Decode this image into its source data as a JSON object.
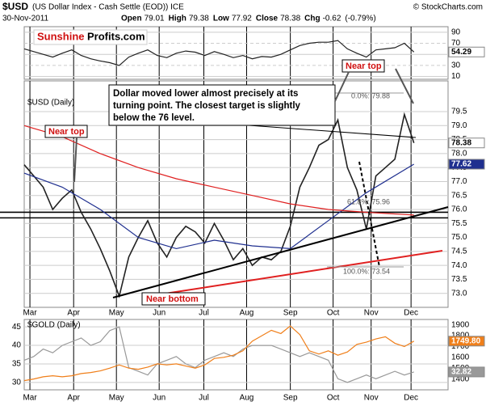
{
  "header": {
    "symbol": "$USD",
    "description": "(US Dollar Index - Cash Settle (EOD)) ICE",
    "date": "30-Nov-2011",
    "copyright": "© StockCharts.com",
    "quote": [
      {
        "label": "Open",
        "value": 79.01
      },
      {
        "label": "High",
        "value": 79.38
      },
      {
        "label": "Low",
        "value": 77.92
      },
      {
        "label": "Close",
        "value": 78.38
      },
      {
        "label": "Chg",
        "value": -0.62
      }
    ],
    "chg_pct": "(-0.79%)"
  },
  "annotations": {
    "logo_red": "Sunshine",
    "logo_black": "Profits.com",
    "comment": [
      "Dollar moved lower almost precisely at its",
      "turning point. The closest target is slightly",
      "below the 76 level."
    ],
    "near_top": "Near top",
    "near_bottom": "Near bottom",
    "fib_0": "0.0%: 79.88",
    "fib_618": "61.8%: 75.96",
    "fib_100": "100.0%: 73.54"
  },
  "chart_data": [
    {
      "type": "line",
      "title": "$USD (Daily)",
      "xlim": [
        0,
        44
      ],
      "xticks": [
        {
          "value": 0.6,
          "label": "Mar"
        },
        {
          "value": 5.2,
          "label": "Apr"
        },
        {
          "value": 9.7,
          "label": "May"
        },
        {
          "value": 14.2,
          "label": "Jun"
        },
        {
          "value": 18.9,
          "label": "Jul"
        },
        {
          "value": 23.4,
          "label": "Aug"
        },
        {
          "value": 28,
          "label": "Sep"
        },
        {
          "value": 32.5,
          "label": "Oct"
        },
        {
          "value": 36.5,
          "label": "Nov"
        },
        {
          "value": 40.7,
          "label": "Dec"
        }
      ],
      "ylim": [
        72.5,
        80.6
      ],
      "yticks": [
        {
          "value": 73,
          "label": "73.0"
        },
        73.5,
        {
          "value": 74,
          "label": "74.0"
        },
        74.5,
        {
          "value": 75,
          "label": "75.0"
        },
        75.5,
        {
          "value": 76,
          "label": "76.0"
        },
        76.5,
        {
          "value": 77,
          "label": "77.0"
        },
        77.5,
        {
          "value": 78,
          "label": "78.0"
        },
        78.5,
        {
          "value": 79,
          "label": "79.0"
        },
        79.5
      ],
      "grid": true,
      "levels": [
        75.9,
        75.7
      ],
      "series": [
        {
          "color": "#222222",
          "values": [
            77.6,
            77.2,
            76.8,
            76.0,
            76.4,
            76.7,
            75.9,
            75.3,
            74.6,
            73.8,
            72.9,
            74.3,
            75.0,
            75.6,
            74.8,
            74.3,
            75.0,
            75.4,
            75.2,
            74.8,
            75.5,
            74.9,
            74.2,
            74.6,
            74.0,
            74.3,
            74.2,
            74.5,
            75.4,
            76.8,
            77.5,
            78.3,
            78.5,
            79.2,
            77.5,
            76.7,
            75.3,
            77.2,
            77.5,
            77.8,
            79.4,
            78.38
          ]
        },
        {
          "color": "#1f2f8f",
          "x": [
            0,
            4,
            8,
            12,
            16,
            20,
            24,
            28,
            32,
            36,
            41
          ],
          "values": [
            77.3,
            76.8,
            76.0,
            75.0,
            74.6,
            74.9,
            74.7,
            74.6,
            75.6,
            76.6,
            77.62
          ]
        },
        {
          "color": "#e02020",
          "x": [
            0,
            4,
            8,
            12,
            16,
            20,
            24,
            28,
            32,
            36,
            41
          ],
          "values": [
            79.0,
            78.6,
            78.0,
            77.5,
            77.1,
            76.8,
            76.5,
            76.2,
            76.0,
            75.9,
            75.8
          ]
        }
      ]
    },
    {
      "type": "line",
      "ylim": [
        5,
        100
      ],
      "yticks": [
        90,
        70,
        50,
        30,
        10
      ],
      "grid": true,
      "series": [
        {
          "color": "#222222",
          "values": [
            60,
            55,
            50,
            45,
            52,
            58,
            48,
            42,
            38,
            35,
            30,
            45,
            52,
            58,
            48,
            44,
            52,
            56,
            54,
            48,
            55,
            50,
            44,
            48,
            42,
            46,
            45,
            50,
            58,
            66,
            70,
            72,
            72,
            75,
            60,
            52,
            45,
            58,
            60,
            62,
            70,
            54.29
          ]
        }
      ]
    },
    {
      "type": "line",
      "title": "$GOLD (Daily)",
      "ylim": [
        28,
        47
      ],
      "yticks": [
        30,
        35,
        40,
        45
      ],
      "y2lim": [
        1300,
        1950
      ],
      "y2ticks": [
        1400,
        1500,
        1600,
        1700,
        1800,
        1900
      ],
      "grid": true,
      "series": [
        {
          "color": "#999999",
          "values": [
            36,
            37,
            39,
            38,
            40,
            41,
            42,
            40,
            41,
            44,
            45,
            34,
            33,
            32,
            35,
            36,
            37,
            35,
            34,
            36,
            37,
            38,
            37,
            39,
            40,
            40,
            40,
            39,
            38,
            37,
            38,
            37,
            36,
            31,
            30,
            31,
            32,
            31,
            32,
            33,
            32,
            32.82
          ]
        },
        {
          "color": "#f07f1a",
          "axis": "y2",
          "values": [
            1385,
            1400,
            1420,
            1430,
            1420,
            1430,
            1450,
            1460,
            1475,
            1500,
            1530,
            1500,
            1490,
            1510,
            1540,
            1530,
            1540,
            1520,
            1500,
            1530,
            1590,
            1600,
            1620,
            1660,
            1750,
            1800,
            1850,
            1820,
            1890,
            1810,
            1660,
            1630,
            1660,
            1620,
            1650,
            1720,
            1740,
            1770,
            1790,
            1730,
            1700,
            1749.8
          ],
          "last_value_label": "1749.80"
        }
      ]
    }
  ]
}
